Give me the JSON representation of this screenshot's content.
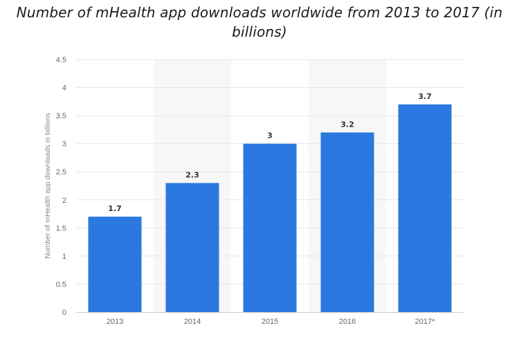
{
  "chart_data": {
    "type": "bar",
    "title": "Number of mHealth app downloads worldwide from 2013 to 2017 (in billions)",
    "xlabel": "",
    "ylabel": "Number of mHealth app downloads in billions",
    "categories": [
      "2013",
      "2014",
      "2015",
      "2016",
      "2017*"
    ],
    "values": [
      1.7,
      2.3,
      3,
      3.2,
      3.7
    ],
    "data_labels": [
      "1.7",
      "2.3",
      "3",
      "3.2",
      "3.7"
    ],
    "ylim": [
      0,
      4.5
    ],
    "yticks": [
      0,
      0.5,
      1,
      1.5,
      2,
      2.5,
      3,
      3.5,
      4,
      4.5
    ],
    "ytick_labels": [
      "0",
      "0.5",
      "1",
      "1.5",
      "2",
      "2.5",
      "3",
      "3.5",
      "4",
      "4.5"
    ],
    "grid": true,
    "shaded_bands": [
      "2014",
      "2016"
    ],
    "colors": {
      "bar": "#2b78e0",
      "band": "#f7f7f7",
      "grid": "#e6e6e6",
      "axis": "#cccccc"
    }
  }
}
